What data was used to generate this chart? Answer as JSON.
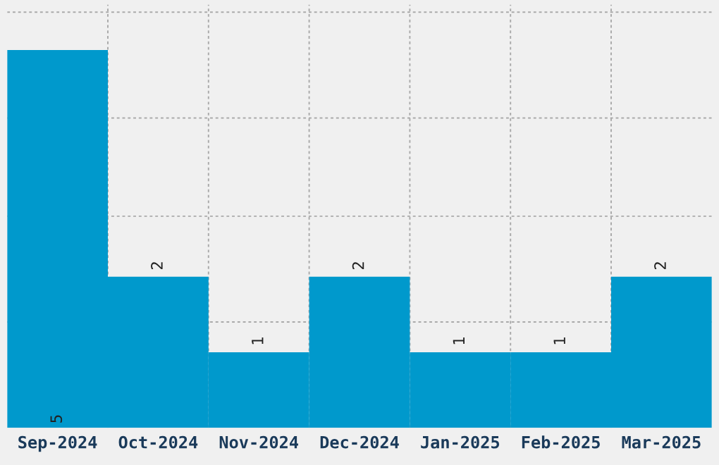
{
  "chart_data": {
    "type": "bar",
    "categories": [
      "Sep-2024",
      "Oct-2024",
      "Nov-2024",
      "Dec-2024",
      "Jan-2025",
      "Feb-2025",
      "Mar-2025"
    ],
    "values": [
      5,
      2,
      1,
      2,
      1,
      1,
      2
    ],
    "color": "#0099cc",
    "ylim": [
      0,
      5.6
    ],
    "yticks": [
      {
        "value": 1.4,
        "label": null
      },
      {
        "value": 2.8,
        "label": null
      },
      {
        "value": 4.1,
        "label": null
      },
      {
        "value": 5.5,
        "label": null
      }
    ],
    "tick_labels": "x",
    "grid": true,
    "data_labels": true
  }
}
